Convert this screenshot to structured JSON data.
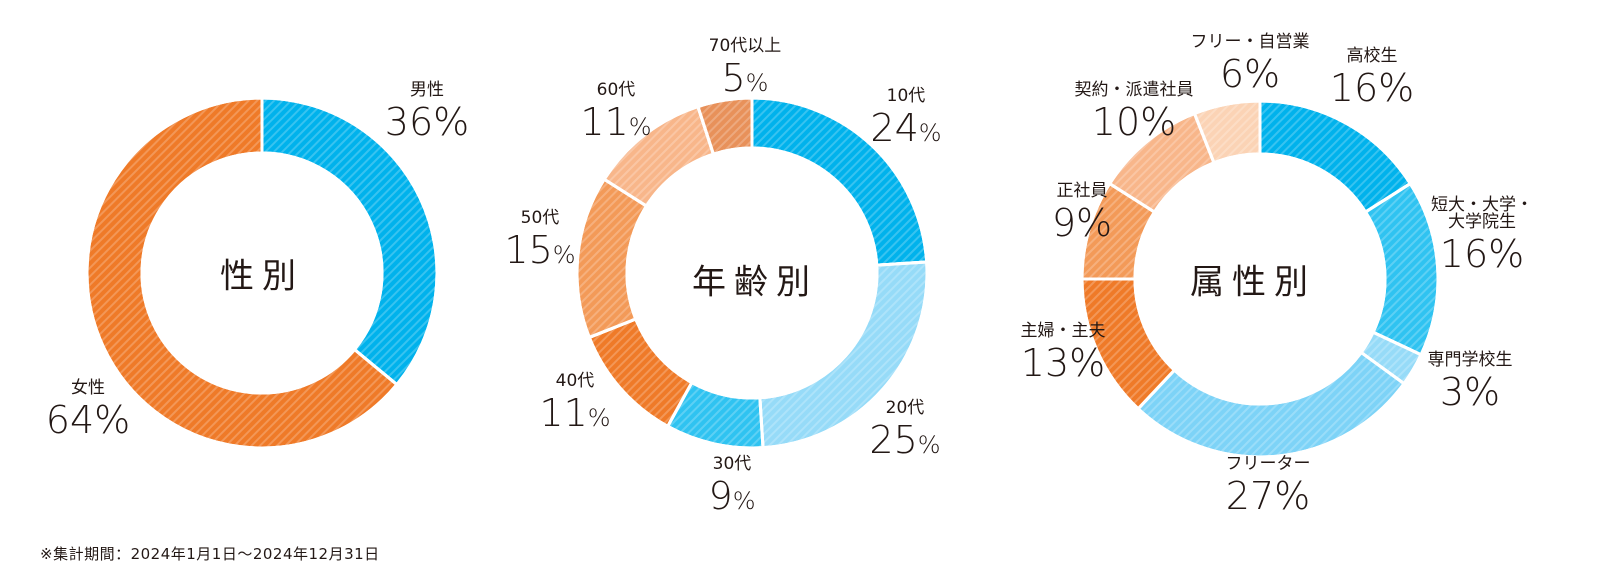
{
  "footnote": "※集計期間：2024年1月1日～2024年12月31日",
  "colors": {
    "blue_dark": "#00b2ec",
    "blue_mid": "#2fc3f1",
    "blue_light": "#7dd3f7",
    "blue_pale": "#96dbf8",
    "orange_dark": "#ef7a28",
    "orange_mid": "#f39a58",
    "orange_light": "#f8b68a",
    "orange_brown": "#e8915a",
    "orange_pale": "#fbd3b5"
  },
  "charts": [
    {
      "title": "性別",
      "segments": [
        {
          "label": "男性",
          "value": "36",
          "pct_text": "36%"
        },
        {
          "label": "女性",
          "value": "64",
          "pct_text": "64%"
        }
      ]
    },
    {
      "title": "年齢別",
      "segments": [
        {
          "label": "10代",
          "value": "24",
          "pct_text": "24%"
        },
        {
          "label": "20代",
          "value": "25",
          "pct_text": "25%"
        },
        {
          "label": "30代",
          "value": "9",
          "pct_text": "9%"
        },
        {
          "label": "40代",
          "value": "11",
          "pct_text": "11%"
        },
        {
          "label": "50代",
          "value": "15",
          "pct_text": "15%"
        },
        {
          "label": "60代",
          "value": "11",
          "pct_text": "11%"
        },
        {
          "label": "70代以上",
          "value": "5",
          "pct_text": "5%"
        }
      ]
    },
    {
      "title": "属性別",
      "segments": [
        {
          "label": "高校生",
          "value": "16",
          "pct_text": "16%"
        },
        {
          "label": "短大・大学・大学院生",
          "label_line1": "短大・大学・",
          "label_line2": "大学院生",
          "value": "16",
          "pct_text": "16%"
        },
        {
          "label": "専門学校生",
          "value": "3",
          "pct_text": "3%"
        },
        {
          "label": "フリーター",
          "value": "27",
          "pct_text": "27%"
        },
        {
          "label": "主婦・主夫",
          "value": "13",
          "pct_text": "13%"
        },
        {
          "label": "正社員",
          "value": "9",
          "pct_text": "9%"
        },
        {
          "label": "契約・派遣社員",
          "value": "10",
          "pct_text": "10%"
        },
        {
          "label": "フリー・自営業",
          "value": "6",
          "pct_text": "6%"
        }
      ]
    }
  ],
  "chart_data": [
    {
      "type": "pie",
      "title": "性別",
      "categories": [
        "男性",
        "女性"
      ],
      "values": [
        36,
        64
      ],
      "unit": "%",
      "donut": true,
      "colors": [
        "#00b2ec",
        "#ef7a28"
      ]
    },
    {
      "type": "pie",
      "title": "年齢別",
      "categories": [
        "10代",
        "20代",
        "30代",
        "40代",
        "50代",
        "60代",
        "70代以上"
      ],
      "values": [
        24,
        25,
        9,
        11,
        15,
        11,
        5
      ],
      "unit": "%",
      "donut": true,
      "colors": [
        "#00b2ec",
        "#96dbf8",
        "#2fc3f1",
        "#ef7a28",
        "#f39a58",
        "#f8b68a",
        "#e8915a"
      ]
    },
    {
      "type": "pie",
      "title": "属性別",
      "categories": [
        "高校生",
        "短大・大学・大学院生",
        "専門学校生",
        "フリーター",
        "主婦・主夫",
        "正社員",
        "契約・派遣社員",
        "フリー・自営業"
      ],
      "values": [
        16,
        16,
        3,
        27,
        13,
        9,
        10,
        6
      ],
      "unit": "%",
      "donut": true,
      "colors": [
        "#00b2ec",
        "#2fc3f1",
        "#96dbf8",
        "#7dd3f7",
        "#ef7a28",
        "#f39a58",
        "#f8b68a",
        "#fbd3b5"
      ]
    }
  ]
}
